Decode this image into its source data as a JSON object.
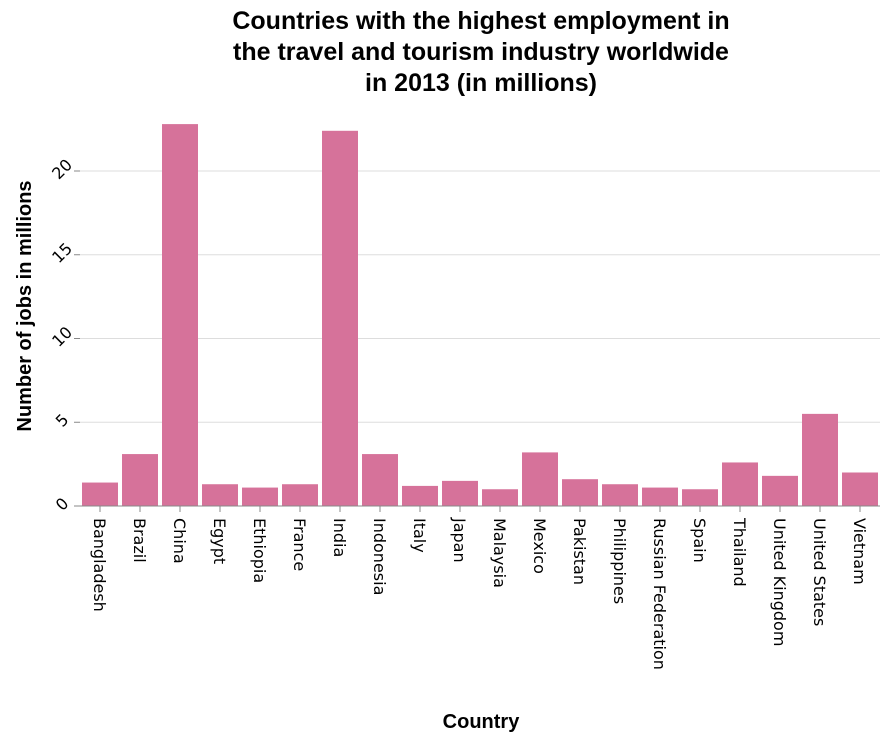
{
  "chart_data": {
    "type": "bar",
    "title": [
      "Countries with the highest employment in",
      "the travel and tourism industry worldwide",
      "in 2013 (in millions)"
    ],
    "xlabel": "Country",
    "ylabel": "Number of jobs in millions",
    "categories": [
      "Bangladesh",
      "Brazil",
      "China",
      "Egypt",
      "Ethiopia",
      "France",
      "India",
      "Indonesia",
      "Italy",
      "Japan",
      "Malaysia",
      "Mexico",
      "Pakistan",
      "Philippines",
      "Russian Federation",
      "Spain",
      "Thailand",
      "United Kingdom",
      "United States",
      "Vietnam"
    ],
    "values": [
      1.4,
      3.1,
      22.8,
      1.3,
      1.1,
      1.3,
      22.4,
      3.1,
      1.2,
      1.5,
      1.0,
      3.2,
      1.6,
      1.3,
      1.1,
      1.0,
      2.6,
      1.8,
      5.5,
      2.0
    ],
    "yticks": [
      0,
      5,
      10,
      15,
      20
    ],
    "ylim": [
      0,
      24
    ],
    "grid": true,
    "bar_color": "#d6729a"
  }
}
